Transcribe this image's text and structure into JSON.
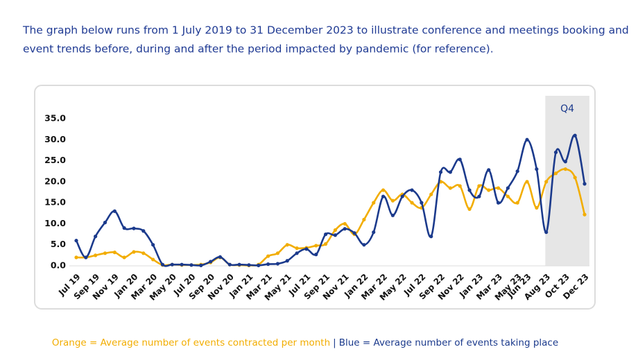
{
  "intro_lines": [
    "The graph below runs from 1 July 2019 to 31 December 2023 to illustrate conference and meetings booking and",
    "event trends before, during and after the period impacted by pandemic (for reference)."
  ],
  "chart_data": {
    "type": "line",
    "categories": [
      "Jul 19",
      null,
      "Sep 19",
      null,
      "Nov 19",
      null,
      "Jan 20",
      null,
      "Mar 20",
      null,
      "May 20",
      null,
      "Jul 20",
      null,
      "Sep 20",
      null,
      "Nov 20",
      null,
      "Jan 21",
      null,
      "Mar 21",
      null,
      "May 21",
      null,
      "Jul 21",
      null,
      "Sep 21",
      null,
      "Nov 21",
      null,
      "Jan 22",
      null,
      "Mar 22",
      null,
      "May 22",
      null,
      "Jul 22",
      null,
      "Sep 22",
      null,
      "Nov 22",
      null,
      "Jan 23",
      null,
      "Mar 23",
      null,
      "May 23",
      "Jun 23",
      null,
      "Aug 23",
      null,
      "Oct 23",
      null,
      "Dec 23"
    ],
    "series": [
      {
        "name": "Orange = Average number of events contracted per month",
        "color": "#f2ad00",
        "values": [
          2.0,
          2.0,
          2.5,
          3.0,
          3.2,
          2.0,
          3.3,
          3.0,
          1.5,
          0.2,
          0.3,
          0.2,
          0.2,
          0.3,
          0.8,
          2.0,
          0.3,
          0.2,
          0.1,
          0.3,
          2.3,
          3.0,
          5.0,
          4.2,
          4.3,
          4.8,
          5.2,
          8.5,
          10.0,
          7.5,
          11.0,
          15.0,
          18.0,
          15.5,
          17.0,
          15.0,
          13.8,
          17.0,
          20.0,
          18.5,
          19.0,
          13.5,
          19.0,
          18.0,
          18.5,
          16.5,
          15.0,
          20.0,
          13.8,
          20.0,
          22.0,
          23.0,
          21.0,
          12.2
        ]
      },
      {
        "name": "Blue = Average number of events taking place",
        "color": "#1b3a8c",
        "values": [
          6.0,
          2.0,
          7.0,
          10.3,
          13.0,
          9.0,
          8.9,
          8.3,
          5.0,
          0.3,
          0.3,
          0.3,
          0.2,
          0.1,
          1.0,
          2.1,
          0.3,
          0.3,
          0.2,
          0.1,
          0.4,
          0.5,
          1.2,
          3.0,
          4.0,
          2.7,
          7.5,
          7.3,
          8.8,
          7.8,
          5.0,
          8.0,
          16.5,
          12.0,
          16.5,
          18.0,
          15.0,
          7.0,
          22.3,
          22.3,
          25.3,
          18.0,
          16.5,
          22.8,
          15.0,
          18.5,
          22.5,
          30.0,
          23.0,
          8.0,
          27.0,
          24.8,
          31.0,
          19.5
        ]
      }
    ],
    "ylim": [
      0,
      35
    ],
    "yticks": [
      {
        "value": 0,
        "label": "0.0"
      },
      {
        "value": 5,
        "label": "5.0"
      },
      {
        "value": 10,
        "label": "10.0"
      },
      {
        "value": 15,
        "label": "15.0"
      },
      {
        "value": 20,
        "label": "20.0"
      },
      {
        "value": 25,
        "label": "25.0"
      },
      {
        "value": 30,
        "label": "30.0"
      },
      {
        "value": 35,
        "label": "35.0"
      }
    ],
    "highlight": {
      "label": "Q4",
      "first": 50,
      "last": 53
    },
    "legend_separator": "|"
  }
}
